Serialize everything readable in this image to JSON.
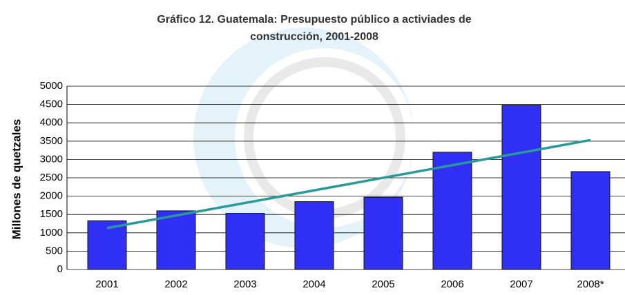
{
  "chart_data": {
    "type": "bar",
    "title": "Gráfico 12. Guatemala: Presupuesto público a activiades de construcción, 2001-2008",
    "y_label": "Millones de quetzales",
    "categories": [
      "2001",
      "2002",
      "2003",
      "2004",
      "2005",
      "2006",
      "2007",
      "2008*"
    ],
    "values": [
      1330,
      1600,
      1530,
      1850,
      1970,
      3200,
      4480,
      2670
    ],
    "color": "#2f2ff5",
    "trendline": {
      "color": "#2a9a98",
      "values": [
        1130,
        3530
      ]
    },
    "ylim": [
      0,
      5000
    ],
    "yticks": [
      0,
      500,
      1000,
      1500,
      2000,
      2500,
      3000,
      3500,
      4000,
      4500,
      5000
    ],
    "grid": true
  }
}
